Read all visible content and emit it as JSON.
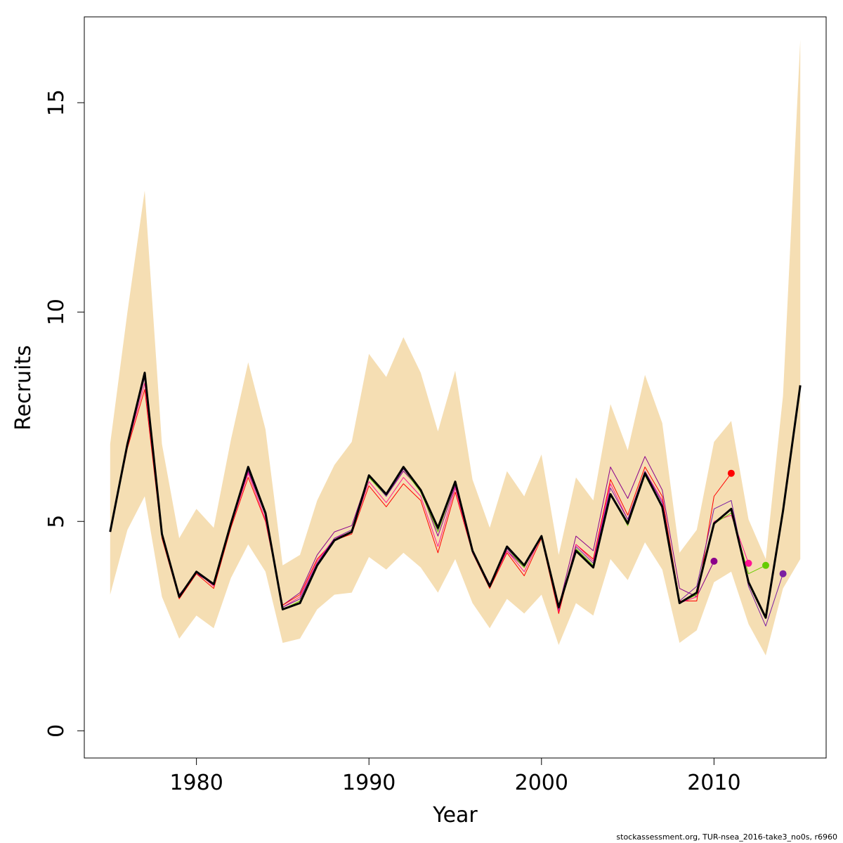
{
  "chart_data": {
    "type": "line",
    "title": "",
    "xlabel": "Year",
    "ylabel": "Recruits",
    "xlim": [
      1973.5,
      2016.5
    ],
    "ylim": [
      -0.65,
      17.05
    ],
    "x_ticks": [
      1980,
      1990,
      2000,
      2010
    ],
    "y_ticks": [
      0,
      5,
      10,
      15
    ],
    "grid": false,
    "band_color": "#F5DEB3",
    "confidence_band": {
      "x": [
        1975,
        1976,
        1977,
        1978,
        1979,
        1980,
        1981,
        1982,
        1983,
        1984,
        1985,
        1986,
        1987,
        1988,
        1989,
        1990,
        1991,
        1992,
        1993,
        1994,
        1995,
        1996,
        1997,
        1998,
        1999,
        2000,
        2001,
        2002,
        2003,
        2004,
        2005,
        2006,
        2007,
        2008,
        2009,
        2010,
        2011,
        2012,
        2013,
        2014,
        2015
      ],
      "lower": [
        3.25,
        4.8,
        5.6,
        3.2,
        2.2,
        2.75,
        2.45,
        3.65,
        4.45,
        3.8,
        2.1,
        2.2,
        2.9,
        3.25,
        3.3,
        4.15,
        3.85,
        4.25,
        3.9,
        3.3,
        4.1,
        3.05,
        2.45,
        3.15,
        2.8,
        3.25,
        2.05,
        3.05,
        2.75,
        4.1,
        3.6,
        4.5,
        3.85,
        2.1,
        2.4,
        3.55,
        3.8,
        2.55,
        1.8,
        3.4,
        4.1
      ],
      "upper": [
        6.85,
        10.0,
        12.9,
        6.85,
        4.6,
        5.3,
        4.85,
        6.95,
        8.8,
        7.2,
        3.95,
        4.2,
        5.5,
        6.35,
        6.9,
        9.0,
        8.45,
        9.4,
        8.55,
        7.15,
        8.6,
        6.0,
        4.85,
        6.2,
        5.6,
        6.6,
        4.2,
        6.05,
        5.5,
        7.8,
        6.7,
        8.5,
        7.35,
        4.25,
        4.8,
        6.9,
        7.4,
        5.05,
        4.1,
        8.0,
        16.5
      ]
    },
    "series": [
      {
        "color": "#000000",
        "width": 3,
        "x": [
          1975,
          1976,
          1977,
          1978,
          1979,
          1980,
          1981,
          1982,
          1983,
          1984,
          1985,
          1986,
          1987,
          1988,
          1989,
          1990,
          1991,
          1992,
          1993,
          1994,
          1995,
          1996,
          1997,
          1998,
          1999,
          2000,
          2001,
          2002,
          2003,
          2004,
          2005,
          2006,
          2007,
          2008,
          2009,
          2010,
          2011,
          2012,
          2013,
          2014,
          2015
        ],
        "values": [
          4.75,
          6.85,
          8.55,
          4.7,
          3.2,
          3.8,
          3.5,
          4.95,
          6.3,
          5.2,
          2.9,
          3.05,
          3.95,
          4.55,
          4.75,
          6.1,
          5.65,
          6.3,
          5.75,
          4.85,
          5.95,
          4.3,
          3.45,
          4.4,
          3.95,
          4.65,
          2.95,
          4.3,
          3.9,
          5.65,
          4.95,
          6.15,
          5.35,
          3.05,
          3.3,
          4.95,
          5.3,
          3.55,
          2.7,
          5.25,
          8.25
        ]
      },
      {
        "color": "#8B008B",
        "width": 1,
        "x": [
          1975,
          1976,
          1977,
          1978,
          1979,
          1980,
          1981,
          1982,
          1983,
          1984,
          1985,
          1986,
          1987,
          1988,
          1989,
          1990,
          1991,
          1992,
          1993,
          1994,
          1995,
          1996,
          1997,
          1998,
          1999,
          2000,
          2001,
          2002,
          2003,
          2004,
          2005,
          2006,
          2007,
          2008,
          2009,
          2010
        ],
        "values": [
          4.75,
          6.8,
          8.45,
          4.65,
          3.25,
          3.75,
          3.5,
          4.95,
          6.2,
          5.15,
          3.0,
          3.3,
          4.2,
          4.75,
          4.9,
          6.1,
          5.6,
          6.2,
          5.75,
          4.65,
          5.85,
          4.3,
          3.5,
          4.3,
          3.9,
          4.65,
          2.95,
          4.65,
          4.3,
          6.3,
          5.55,
          6.55,
          5.75,
          3.4,
          3.2,
          4.05
        ]
      },
      {
        "color": "#FF0000",
        "width": 1,
        "x": [
          1975,
          1976,
          1977,
          1978,
          1979,
          1980,
          1981,
          1982,
          1983,
          1984,
          1985,
          1986,
          1987,
          1988,
          1989,
          1990,
          1991,
          1992,
          1993,
          1994,
          1995,
          1996,
          1997,
          1998,
          1999,
          2000,
          2001,
          2002,
          2003,
          2004,
          2005,
          2006,
          2007,
          2008,
          2009,
          2010,
          2011
        ],
        "values": [
          4.75,
          6.75,
          8.15,
          4.6,
          3.15,
          3.75,
          3.4,
          4.85,
          6.05,
          5.0,
          3.0,
          3.25,
          4.1,
          4.55,
          4.7,
          5.85,
          5.35,
          5.9,
          5.5,
          4.25,
          5.7,
          4.25,
          3.4,
          4.25,
          3.7,
          4.6,
          2.8,
          4.45,
          4.1,
          6.0,
          5.15,
          6.3,
          5.6,
          3.1,
          3.1,
          5.6,
          6.15
        ]
      },
      {
        "color": "#FF1493",
        "width": 1,
        "x": [
          1975,
          1976,
          1977,
          1978,
          1979,
          1980,
          1981,
          1982,
          1983,
          1984,
          1985,
          1986,
          1987,
          1988,
          1989,
          1990,
          1991,
          1992,
          1993,
          1994,
          1995,
          1996,
          1997,
          1998,
          1999,
          2000,
          2001,
          2002,
          2003,
          2004,
          2005,
          2006,
          2007,
          2008,
          2009,
          2010,
          2011,
          2012
        ],
        "values": [
          4.75,
          6.8,
          8.3,
          4.65,
          3.2,
          3.8,
          3.45,
          4.9,
          6.15,
          5.05,
          2.95,
          3.2,
          4.05,
          4.6,
          4.75,
          5.95,
          5.45,
          6.05,
          5.6,
          4.4,
          5.8,
          4.25,
          3.45,
          4.3,
          3.8,
          4.65,
          2.85,
          4.45,
          4.05,
          5.9,
          5.05,
          6.2,
          5.5,
          3.05,
          3.2,
          5.0,
          5.15,
          4.0
        ]
      },
      {
        "color": "#66CC00",
        "width": 1,
        "x": [
          1975,
          1976,
          1977,
          1978,
          1979,
          1980,
          1981,
          1982,
          1983,
          1984,
          1985,
          1986,
          1987,
          1988,
          1989,
          1990,
          1991,
          1992,
          1993,
          1994,
          1995,
          1996,
          1997,
          1998,
          1999,
          2000,
          2001,
          2002,
          2003,
          2004,
          2005,
          2006,
          2007,
          2008,
          2009,
          2010,
          2011,
          2012,
          2013
        ],
        "values": [
          4.75,
          6.85,
          8.5,
          4.7,
          3.2,
          3.8,
          3.5,
          4.95,
          6.25,
          5.15,
          2.9,
          3.1,
          4.0,
          4.55,
          4.75,
          6.05,
          5.6,
          6.25,
          5.7,
          4.75,
          5.9,
          4.3,
          3.45,
          4.35,
          3.9,
          4.65,
          2.9,
          4.35,
          3.95,
          5.65,
          4.9,
          6.1,
          5.35,
          3.05,
          3.25,
          4.95,
          5.2,
          3.75,
          3.95
        ]
      },
      {
        "color": "#7B1FA2",
        "width": 1,
        "x": [
          1975,
          1976,
          1977,
          1978,
          1979,
          1980,
          1981,
          1982,
          1983,
          1984,
          1985,
          1986,
          1987,
          1988,
          1989,
          1990,
          1991,
          1992,
          1993,
          1994,
          1995,
          1996,
          1997,
          1998,
          1999,
          2000,
          2001,
          2002,
          2003,
          2004,
          2005,
          2006,
          2007,
          2008,
          2009,
          2010,
          2011,
          2012,
          2013,
          2014
        ],
        "values": [
          4.75,
          6.85,
          8.45,
          4.7,
          3.2,
          3.8,
          3.5,
          4.95,
          6.25,
          5.15,
          2.95,
          3.15,
          4.0,
          4.6,
          4.8,
          6.1,
          5.6,
          6.25,
          5.75,
          4.8,
          5.9,
          4.3,
          3.45,
          4.35,
          3.95,
          4.65,
          2.9,
          4.4,
          4.0,
          5.8,
          5.05,
          6.2,
          5.45,
          3.1,
          3.45,
          5.3,
          5.5,
          3.45,
          2.5,
          3.75
        ]
      }
    ],
    "endpoints": [
      {
        "x": 2010,
        "y": 4.05,
        "color": "#8B008B"
      },
      {
        "x": 2011,
        "y": 6.15,
        "color": "#FF0000"
      },
      {
        "x": 2012,
        "y": 4.0,
        "color": "#FF1493"
      },
      {
        "x": 2013,
        "y": 3.95,
        "color": "#66CC00"
      },
      {
        "x": 2014,
        "y": 3.75,
        "color": "#7B1FA2"
      }
    ]
  },
  "footer": "stockassessment.org, TUR-nsea_2016-take3_no0s, r6960"
}
